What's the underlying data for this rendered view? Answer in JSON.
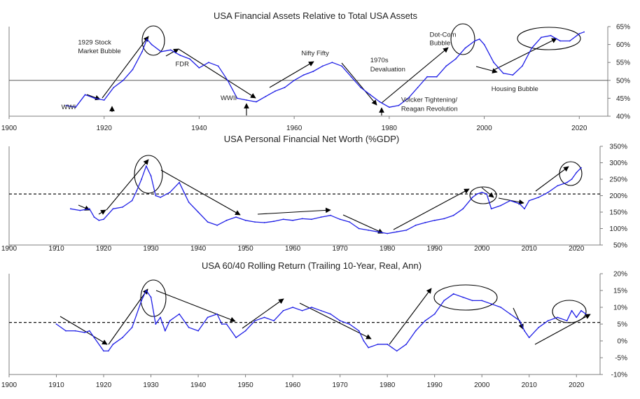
{
  "chart_data": [
    {
      "type": "line",
      "title": "USA Financial Assets Relative to Total USA Assets",
      "x_ticks": [
        "1900",
        "1920",
        "1940",
        "1960",
        "1980",
        "2000",
        "2020"
      ],
      "y_ticks": [
        "40%",
        "45%",
        "50%",
        "55%",
        "60%",
        "65%"
      ],
      "xlim": [
        1900,
        2026
      ],
      "ylim": [
        40,
        65
      ],
      "reference_line": 50,
      "color": "#1f1fe6",
      "series": [
        {
          "x": [
            1912,
            1914,
            1916,
            1918,
            1920,
            1922,
            1924,
            1926,
            1928,
            1929,
            1930,
            1932,
            1934,
            1936,
            1938,
            1940,
            1942,
            1944,
            1946,
            1948,
            1950,
            1952,
            1954,
            1956,
            1958,
            1960,
            1962,
            1964,
            1966,
            1968,
            1970,
            1972,
            1974,
            1976,
            1978,
            1980,
            1982,
            1984,
            1986,
            1988,
            1990,
            1992,
            1994,
            1996,
            1998,
            1999,
            2000,
            2002,
            2004,
            2006,
            2008,
            2010,
            2012,
            2014,
            2016,
            2018,
            2020,
            2021
          ],
          "values": [
            43,
            42.5,
            46,
            45,
            44.5,
            48,
            50,
            53,
            58,
            61.5,
            60,
            58,
            58.5,
            57,
            56,
            53.5,
            55,
            54,
            50,
            45,
            44.5,
            44,
            45.5,
            47,
            48,
            50,
            51.5,
            52.5,
            54,
            55,
            54,
            51,
            48,
            46,
            44,
            42.5,
            43,
            45,
            48,
            51,
            51,
            54,
            56,
            59,
            61,
            61.5,
            60,
            55,
            52,
            51.5,
            54,
            59,
            62,
            62.5,
            61,
            61,
            63,
            63.5
          ]
        }
      ],
      "annotations": [
        {
          "text": "1929 Stock",
          "x": 1914.5,
          "y": 60
        },
        {
          "text": "Market Bubble",
          "x": 1914.5,
          "y": 57.6
        },
        {
          "text": "FDR",
          "x": 1935,
          "y": 54
        },
        {
          "text": "Nifty Fifty",
          "x": 1961.5,
          "y": 57
        },
        {
          "text": "1970s",
          "x": 1976,
          "y": 55
        },
        {
          "text": "Devaluation",
          "x": 1976,
          "y": 52.5
        },
        {
          "text": "Dot-Com",
          "x": 1988.5,
          "y": 62.2
        },
        {
          "text": "Bubble",
          "x": 1988.5,
          "y": 59.8
        },
        {
          "text": "WWII",
          "x": 1944.5,
          "y": 44.5
        },
        {
          "text": "Housing Bubble",
          "x": 2001.5,
          "y": 47
        },
        {
          "text": "Volcker Tightening/",
          "x": 1982.5,
          "y": 44
        },
        {
          "text": "Reagan Revolution",
          "x": 1982.5,
          "y": 41.5
        },
        {
          "text": "WWI",
          "x": 1911,
          "y": 42
        }
      ]
    },
    {
      "type": "line",
      "title": "USA Personal Financial Net Worth (%GDP)",
      "x_ticks": [
        "1900",
        "1910",
        "1920",
        "1930",
        "1940",
        "1950",
        "1960",
        "1970",
        "1980",
        "1990",
        "2000",
        "2010",
        "2020"
      ],
      "y_ticks": [
        "50%",
        "100%",
        "150%",
        "200%",
        "250%",
        "300%",
        "350%"
      ],
      "xlim": [
        1900,
        2025
      ],
      "ylim": [
        50,
        350
      ],
      "reference_line": 205,
      "color": "#1f1fe6",
      "series": [
        {
          "x": [
            1913,
            1915,
            1917,
            1918,
            1919,
            1920,
            1922,
            1924,
            1926,
            1927,
            1928,
            1929,
            1930,
            1931,
            1932,
            1934,
            1936,
            1937,
            1938,
            1940,
            1942,
            1944,
            1946,
            1948,
            1950,
            1952,
            1954,
            1956,
            1958,
            1960,
            1962,
            1964,
            1966,
            1968,
            1970,
            1972,
            1974,
            1976,
            1978,
            1980,
            1982,
            1984,
            1986,
            1988,
            1990,
            1992,
            1994,
            1996,
            1998,
            1999,
            2000,
            2001,
            2002,
            2004,
            2006,
            2007,
            2008,
            2009,
            2010,
            2012,
            2014,
            2016,
            2018,
            2019,
            2020,
            2021
          ],
          "values": [
            160,
            155,
            160,
            135,
            125,
            128,
            160,
            165,
            185,
            215,
            250,
            290,
            260,
            200,
            195,
            210,
            240,
            210,
            180,
            150,
            120,
            110,
            125,
            135,
            125,
            120,
            118,
            122,
            128,
            125,
            130,
            128,
            135,
            140,
            128,
            120,
            100,
            95,
            90,
            85,
            90,
            95,
            110,
            118,
            125,
            130,
            140,
            160,
            195,
            205,
            210,
            205,
            160,
            170,
            185,
            180,
            175,
            160,
            185,
            195,
            210,
            230,
            240,
            250,
            270,
            285
          ]
        }
      ]
    },
    {
      "type": "line",
      "title": "USA 60/40 Rolling Return (Trailing 10-Year, Real, Ann)",
      "x_ticks": [
        "1900",
        "1910",
        "1920",
        "1930",
        "1940",
        "1950",
        "1960",
        "1970",
        "1980",
        "1990",
        "2000",
        "2010",
        "2020"
      ],
      "y_ticks": [
        "-10%",
        "-5%",
        "0%",
        "5%",
        "10%",
        "15%",
        "20%"
      ],
      "xlim": [
        1900,
        2025
      ],
      "ylim": [
        -10,
        20
      ],
      "reference_line": 5.5,
      "color": "#1f1fe6",
      "series": [
        {
          "x": [
            1910,
            1912,
            1914,
            1916,
            1917,
            1918,
            1920,
            1921,
            1922,
            1924,
            1926,
            1928,
            1929,
            1930,
            1931,
            1932,
            1933,
            1934,
            1936,
            1938,
            1940,
            1942,
            1944,
            1945,
            1946,
            1948,
            1950,
            1952,
            1954,
            1956,
            1958,
            1960,
            1962,
            1964,
            1966,
            1968,
            1970,
            1972,
            1974,
            1975,
            1976,
            1978,
            1980,
            1981,
            1982,
            1984,
            1986,
            1988,
            1990,
            1992,
            1994,
            1996,
            1998,
            2000,
            2002,
            2004,
            2006,
            2008,
            2009,
            2010,
            2012,
            2014,
            2016,
            2018,
            2019,
            2020,
            2021,
            2022
          ],
          "values": [
            5,
            3,
            3,
            2.5,
            3,
            1,
            -3,
            -3,
            -1,
            1,
            4,
            12,
            15,
            13,
            5,
            7,
            3,
            6,
            8,
            4,
            3,
            7,
            8,
            5,
            5,
            1,
            3,
            6,
            7,
            6,
            9,
            10,
            9,
            10,
            9,
            8,
            6,
            5,
            3,
            0,
            -2,
            -1,
            -1,
            -2,
            -3,
            -1,
            3,
            6,
            8,
            12,
            14,
            13,
            12,
            12,
            11,
            10,
            8,
            6,
            3,
            1,
            4,
            6,
            7,
            6,
            9,
            7,
            9,
            8
          ]
        }
      ]
    }
  ]
}
